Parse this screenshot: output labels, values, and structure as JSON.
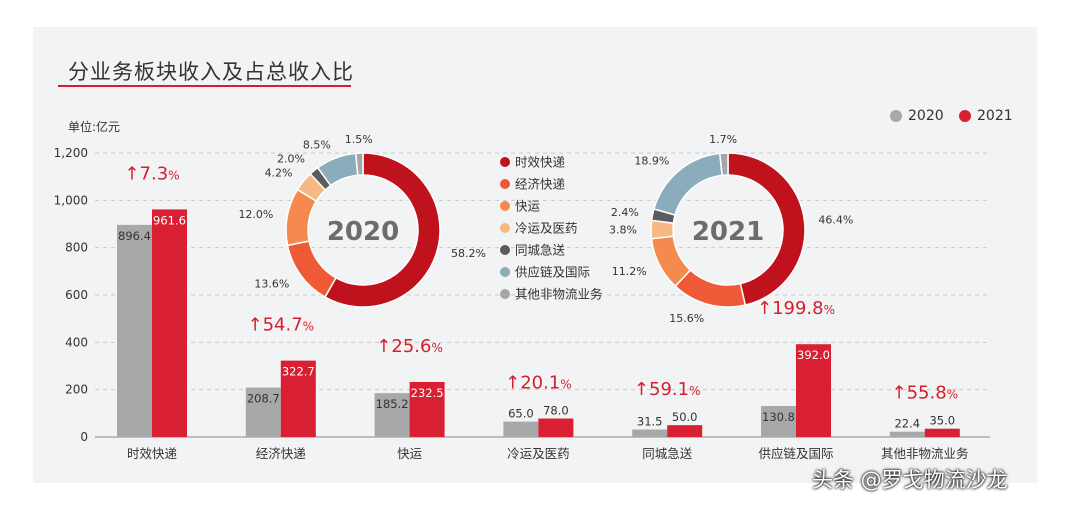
{
  "chart_data": [
    {
      "type": "bar",
      "title": "分业务板块收入及占总收入比",
      "unit_label": "单位:亿元",
      "categories": [
        "时效快递",
        "经济快递",
        "快运",
        "冷运及医药",
        "同城急送",
        "供应链及国际",
        "其他非物流业务"
      ],
      "series": [
        {
          "name": "2020",
          "color": "#a7a8aa",
          "values": [
            896.4,
            208.7,
            185.2,
            65.0,
            31.5,
            130.8,
            22.4
          ]
        },
        {
          "name": "2021",
          "color": "#d91f32",
          "values": [
            961.6,
            322.7,
            232.5,
            78.0,
            50.0,
            392.0,
            35.0
          ]
        }
      ],
      "growth_labels": [
        "7.3",
        "54.7",
        "25.6",
        "20.1",
        "59.1",
        "199.8",
        "55.8"
      ],
      "growth_unit": "%",
      "growth_arrow": "↑",
      "yticks": [
        "0",
        "200",
        "400",
        "600",
        "800",
        "1,000",
        "1,200"
      ],
      "ylim": [
        0,
        1200
      ],
      "grid": "dashed horizontal",
      "legend_position": "top-right"
    },
    {
      "type": "pie",
      "center_label": "2020",
      "labels": [
        "时效快递",
        "经济快递",
        "快运",
        "冷运及医药",
        "同城急送",
        "供应链及国际",
        "其他非物流业务"
      ],
      "values": [
        58.2,
        13.6,
        12.0,
        4.2,
        2.0,
        8.5,
        1.5
      ],
      "value_labels": [
        "58.2%",
        "13.6%",
        "12.0%",
        "4.2%",
        "2.0%",
        "8.5%",
        "1.5%"
      ]
    },
    {
      "type": "pie",
      "center_label": "2021",
      "labels": [
        "时效快递",
        "经济快递",
        "快运",
        "冷运及医药",
        "同城急送",
        "供应链及国际",
        "其他非物流业务"
      ],
      "values": [
        46.4,
        15.6,
        11.2,
        3.8,
        2.4,
        18.9,
        1.7
      ],
      "value_labels": [
        "46.4%",
        "15.6%",
        "11.2%",
        "3.8%",
        "2.4%",
        "18.9%",
        "1.7%"
      ]
    }
  ],
  "pie_legend": [
    {
      "label": "时效快递",
      "color": "#c0121c"
    },
    {
      "label": "经济快递",
      "color": "#ee5a36"
    },
    {
      "label": "快运",
      "color": "#f58a4e"
    },
    {
      "label": "冷运及医药",
      "color": "#f6b983"
    },
    {
      "label": "同城急送",
      "color": "#5a5b5d"
    },
    {
      "label": "供应链及国际",
      "color": "#8aacbb"
    },
    {
      "label": "其他非物流业务",
      "color": "#a5a6a8"
    }
  ],
  "watermark": "头条 @罗戈物流沙龙"
}
